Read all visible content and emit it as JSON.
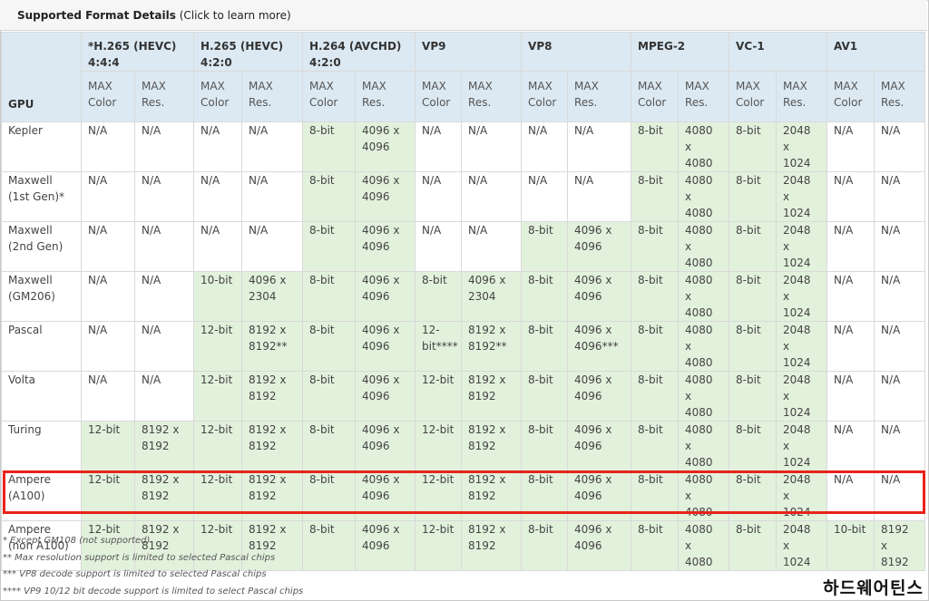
{
  "header": {
    "title": "Supported Format Details",
    "link_text": "(Click to learn more)"
  },
  "columns": {
    "gpu": "GPU",
    "formats": [
      "*H.265 (HEVC) 4:4:4",
      "H.265 (HEVC) 4:2:0",
      "H.264 (AVCHD) 4:2:0",
      "VP9",
      "VP8",
      "MPEG-2",
      "VC-1",
      "AV1"
    ],
    "sub": [
      "MAX Color",
      "MAX Res.",
      "MAX Color",
      "MAX Res.",
      "MAX Color",
      "MAX Res.",
      "MAX Color",
      "MAX Res.",
      "MAX Color",
      "MAX Res.",
      "MAX Color",
      "MAX Res.",
      "MAX Color",
      "MAX Res.",
      "MAX Color",
      "MAX Res."
    ]
  },
  "rows": [
    {
      "gpu": "Kepler",
      "cells": [
        "N/A",
        "N/A",
        "N/A",
        "N/A",
        "8-bit",
        "4096 x 4096",
        "N/A",
        "N/A",
        "N/A",
        "N/A",
        "8-bit",
        "4080 x 4080",
        "8-bit",
        "2048 x 1024",
        "N/A",
        "N/A"
      ],
      "supported": [
        0,
        0,
        0,
        0,
        1,
        1,
        0,
        0,
        0,
        0,
        1,
        1,
        1,
        1,
        0,
        0
      ]
    },
    {
      "gpu": "Maxwell (1st Gen)*",
      "cells": [
        "N/A",
        "N/A",
        "N/A",
        "N/A",
        "8-bit",
        "4096 x 4096",
        "N/A",
        "N/A",
        "N/A",
        "N/A",
        "8-bit",
        "4080 x 4080",
        "8-bit",
        "2048 x 1024",
        "N/A",
        "N/A"
      ],
      "supported": [
        0,
        0,
        0,
        0,
        1,
        1,
        0,
        0,
        0,
        0,
        1,
        1,
        1,
        1,
        0,
        0
      ]
    },
    {
      "gpu": "Maxwell (2nd Gen)",
      "cells": [
        "N/A",
        "N/A",
        "N/A",
        "N/A",
        "8-bit",
        "4096 x 4096",
        "N/A",
        "N/A",
        "8-bit",
        "4096 x 4096",
        "8-bit",
        "4080 x 4080",
        "8-bit",
        "2048 x 1024",
        "N/A",
        "N/A"
      ],
      "supported": [
        0,
        0,
        0,
        0,
        1,
        1,
        0,
        0,
        1,
        1,
        1,
        1,
        1,
        1,
        0,
        0
      ]
    },
    {
      "gpu": "Maxwell (GM206)",
      "cells": [
        "N/A",
        "N/A",
        "10-bit",
        "4096 x 2304",
        "8-bit",
        "4096 x 4096",
        "8-bit",
        "4096 x 2304",
        "8-bit",
        "4096 x 4096",
        "8-bit",
        "4080 x 4080",
        "8-bit",
        "2048 x 1024",
        "N/A",
        "N/A"
      ],
      "supported": [
        0,
        0,
        1,
        1,
        1,
        1,
        1,
        1,
        1,
        1,
        1,
        1,
        1,
        1,
        0,
        0
      ]
    },
    {
      "gpu": "Pascal",
      "cells": [
        "N/A",
        "N/A",
        "12-bit",
        "8192 x 8192**",
        "8-bit",
        "4096 x 4096",
        "12-bit****",
        "8192 x 8192**",
        "8-bit",
        "4096 x 4096***",
        "8-bit",
        "4080 x 4080",
        "8-bit",
        "2048 x 1024",
        "N/A",
        "N/A"
      ],
      "supported": [
        0,
        0,
        1,
        1,
        1,
        1,
        1,
        1,
        1,
        1,
        1,
        1,
        1,
        1,
        0,
        0
      ]
    },
    {
      "gpu": "Volta",
      "cells": [
        "N/A",
        "N/A",
        "12-bit",
        "8192 x 8192",
        "8-bit",
        "4096 x 4096",
        "12-bit",
        "8192 x 8192",
        "8-bit",
        "4096 x 4096",
        "8-bit",
        "4080 x 4080",
        "8-bit",
        "2048 x 1024",
        "N/A",
        "N/A"
      ],
      "supported": [
        0,
        0,
        1,
        1,
        1,
        1,
        1,
        1,
        1,
        1,
        1,
        1,
        1,
        1,
        0,
        0
      ]
    },
    {
      "gpu": "Turing",
      "cells": [
        "12-bit",
        "8192 x 8192",
        "12-bit",
        "8192 x 8192",
        "8-bit",
        "4096 x 4096",
        "12-bit",
        "8192 x 8192",
        "8-bit",
        "4096 x 4096",
        "8-bit",
        "4080 x 4080",
        "8-bit",
        "2048 x 1024",
        "N/A",
        "N/A"
      ],
      "supported": [
        1,
        1,
        1,
        1,
        1,
        1,
        1,
        1,
        1,
        1,
        1,
        1,
        1,
        1,
        0,
        0
      ]
    },
    {
      "gpu": "Ampere (A100)",
      "cells": [
        "12-bit",
        "8192 x 8192",
        "12-bit",
        "8192 x 8192",
        "8-bit",
        "4096 x 4096",
        "12-bit",
        "8192 x 8192",
        "8-bit",
        "4096 x 4096",
        "8-bit",
        "4080 x 4080",
        "8-bit",
        "2048 x 1024",
        "N/A",
        "N/A"
      ],
      "supported": [
        1,
        1,
        1,
        1,
        1,
        1,
        1,
        1,
        1,
        1,
        1,
        1,
        1,
        1,
        0,
        0
      ]
    },
    {
      "gpu": "Ampere (non A100)",
      "cells": [
        "12-bit",
        "8192 x 8192",
        "12-bit",
        "8192 x 8192",
        "8-bit",
        "4096 x 4096",
        "12-bit",
        "8192 x 8192",
        "8-bit",
        "4096 x 4096",
        "8-bit",
        "4080 x 4080",
        "8-bit",
        "2048 x 1024",
        "10-bit",
        "8192 x 8192"
      ],
      "supported": [
        1,
        1,
        1,
        1,
        1,
        1,
        1,
        1,
        1,
        1,
        1,
        1,
        1,
        1,
        1,
        1
      ],
      "highlighted": true
    }
  ],
  "footnotes": [
    "* Except GM108 (not supported)",
    "** Max resolution support is limited to selected Pascal chips",
    "*** VP8 decode support is limited to selected Pascal chips",
    "**** VP9 10/12 bit decode support is limited to select Pascal chips"
  ],
  "watermark": "하드웨어틴스",
  "colors": {
    "header_bg": "#dce9f3",
    "supported_bg": "#e2f1dc",
    "highlight_border": "#e8231a"
  }
}
